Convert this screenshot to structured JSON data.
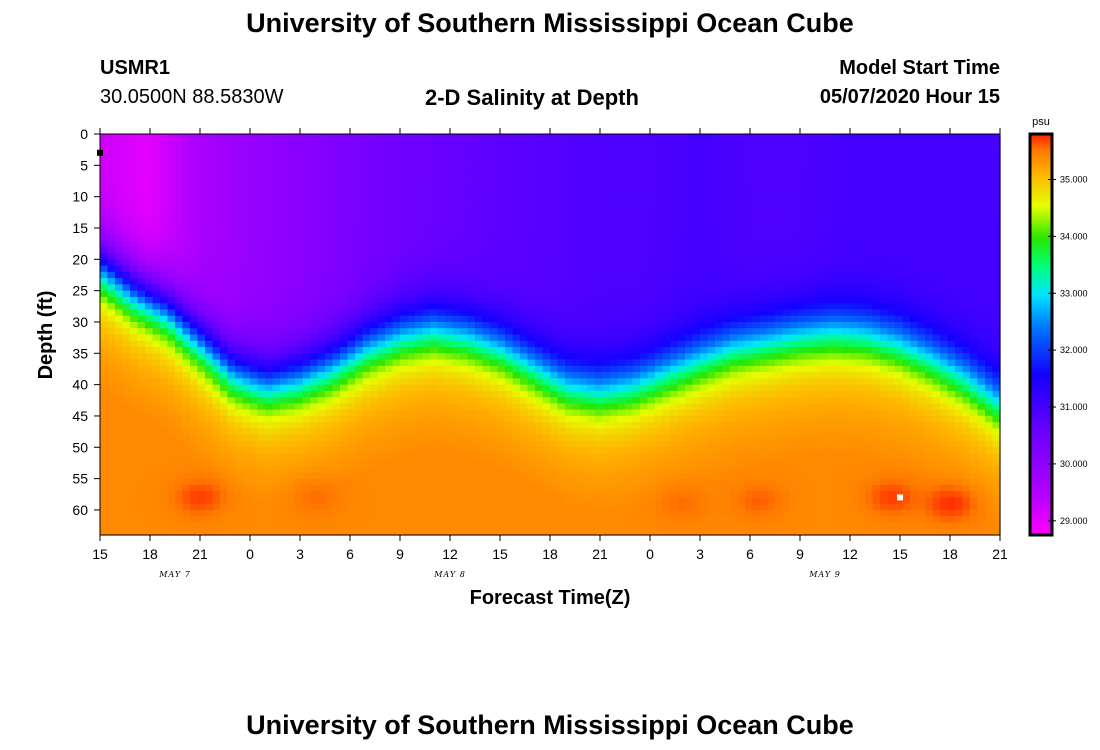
{
  "page": {
    "title_top": "University of Southern Mississippi Ocean Cube",
    "title_bottom": "University of Southern Mississippi Ocean Cube",
    "station_id": "USMR1",
    "station_coords": "30.0500N 88.5830W",
    "plot_title": "2-D Salinity at Depth",
    "start_label": "Model Start Time",
    "start_value": "05/07/2020 Hour 15"
  },
  "chart_data": {
    "type": "heatmap",
    "title": "2-D Salinity at Depth",
    "xlabel": "Forecast Time(Z)",
    "ylabel": "Depth (ft)",
    "x_tick_labels": [
      "15",
      "18",
      "21",
      "0",
      "3",
      "6",
      "9",
      "12",
      "15",
      "18",
      "21",
      "0",
      "3",
      "6",
      "9",
      "12",
      "15",
      "18",
      "21"
    ],
    "x_range_hours": [
      0,
      54
    ],
    "day_labels": [
      {
        "label": "MAY 7",
        "hour": 4.5
      },
      {
        "label": "MAY 8",
        "hour": 21
      },
      {
        "label": "MAY 9",
        "hour": 43.5
      }
    ],
    "y_ticks": [
      0,
      5,
      10,
      15,
      20,
      25,
      30,
      35,
      40,
      45,
      50,
      55,
      60
    ],
    "y_range": [
      0,
      64
    ],
    "y_inverted": true,
    "colorbar": {
      "unit": "psu",
      "range": [
        28.75,
        35.8
      ],
      "ticks": [
        "35.000",
        "34.000",
        "33.000",
        "32.000",
        "31.000",
        "30.000",
        "29.000"
      ],
      "tick_values": [
        35,
        34,
        33,
        32,
        31,
        30,
        29
      ]
    },
    "halocline_depth_ft": {
      "hours": [
        0,
        2,
        4,
        6,
        8,
        10,
        12,
        14,
        16,
        18,
        20,
        22,
        24,
        26,
        28,
        30,
        32,
        34,
        36,
        38,
        40,
        42,
        44,
        46,
        48,
        50,
        52,
        54
      ],
      "depth": [
        21,
        25,
        28,
        33,
        38,
        40,
        39,
        37,
        34,
        32,
        31,
        32,
        34,
        37,
        40,
        41,
        40,
        38,
        36,
        34,
        33,
        32,
        31.5,
        32,
        33.5,
        36,
        39,
        43
      ]
    },
    "surface_salinity_psu": {
      "hours": [
        0,
        3,
        6,
        9,
        12,
        15,
        18,
        21,
        24,
        27,
        30,
        33,
        36,
        39,
        42,
        45,
        48,
        51,
        54
      ],
      "values": [
        29.2,
        29.0,
        29.6,
        29.9,
        30.1,
        30.3,
        30.5,
        30.6,
        30.7,
        30.8,
        30.9,
        30.9,
        31.0,
        30.9,
        30.9,
        31.0,
        31.0,
        31.0,
        31.0
      ]
    },
    "bottom_maxima": [
      {
        "hour": 6,
        "depth": 58,
        "value": 35.7
      },
      {
        "hour": 13,
        "depth": 58,
        "value": 35.55
      },
      {
        "hour": 35,
        "depth": 59,
        "value": 35.55
      },
      {
        "hour": 39.5,
        "depth": 58.5,
        "value": 35.6
      },
      {
        "hour": 47.5,
        "depth": 58,
        "value": 35.7
      },
      {
        "hour": 51,
        "depth": 59,
        "value": 35.75
      }
    ],
    "markers": [
      {
        "hour": 0,
        "depth": 3,
        "color": "#000000"
      },
      {
        "hour": 48,
        "depth": 58,
        "color": "#ffffff"
      }
    ]
  }
}
